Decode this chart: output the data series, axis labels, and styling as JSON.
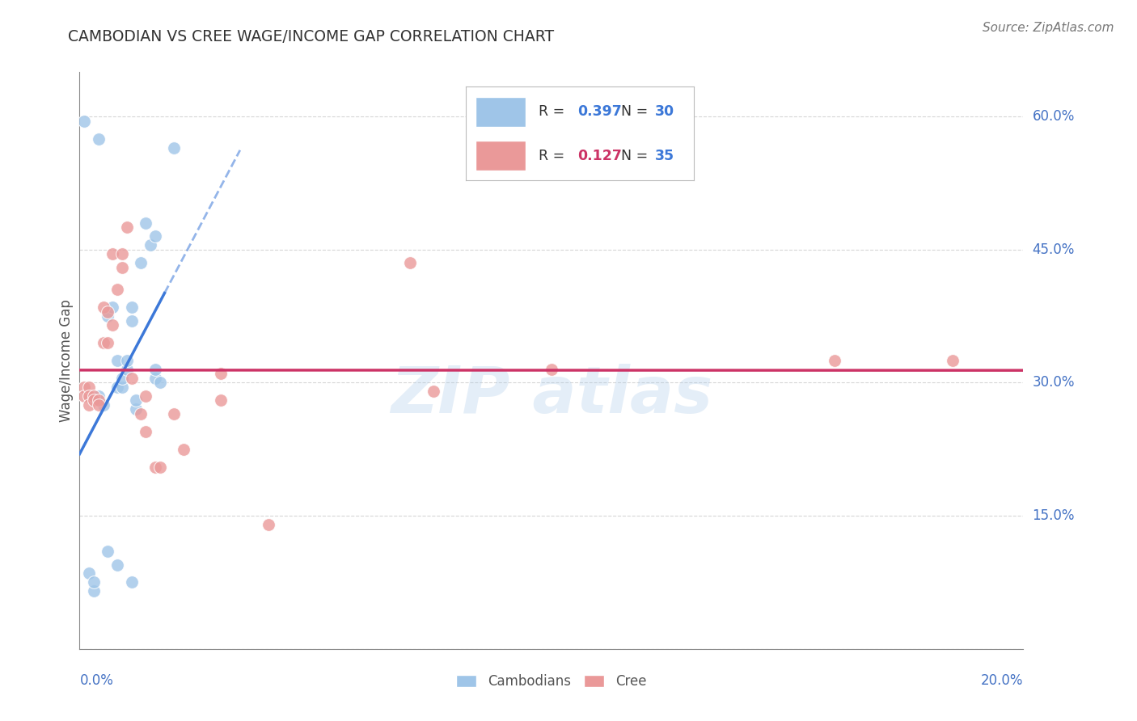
{
  "title": "CAMBODIAN VS CREE WAGE/INCOME GAP CORRELATION CHART",
  "source": "Source: ZipAtlas.com",
  "ylabel": "Wage/Income Gap",
  "xlim": [
    0.0,
    0.2
  ],
  "ylim": [
    0.0,
    0.65
  ],
  "y_ticks": [
    0.0,
    0.15,
    0.3,
    0.45,
    0.6
  ],
  "y_tick_labels": [
    "",
    "15.0%",
    "30.0%",
    "45.0%",
    "60.0%"
  ],
  "x_tick_labels": [
    "0.0%",
    "20.0%"
  ],
  "blue_color": "#9fc5e8",
  "pink_color": "#ea9999",
  "blue_line_color": "#3c78d8",
  "pink_line_color": "#cc3366",
  "grid_color": "#cccccc",
  "background_color": "#ffffff",
  "cambodian_R": "0.397",
  "cambodian_N": "30",
  "cree_R": "0.127",
  "cree_N": "35",
  "legend_blue_R_color": "#3c78d8",
  "legend_pink_R_color": "#cc3366",
  "legend_N_color": "#3c78d8",
  "cambodian_points": [
    [
      0.001,
      0.595
    ],
    [
      0.004,
      0.575
    ],
    [
      0.004,
      0.285
    ],
    [
      0.005,
      0.275
    ],
    [
      0.006,
      0.375
    ],
    [
      0.007,
      0.385
    ],
    [
      0.008,
      0.295
    ],
    [
      0.008,
      0.325
    ],
    [
      0.009,
      0.295
    ],
    [
      0.009,
      0.305
    ],
    [
      0.01,
      0.315
    ],
    [
      0.01,
      0.325
    ],
    [
      0.011,
      0.37
    ],
    [
      0.011,
      0.385
    ],
    [
      0.012,
      0.27
    ],
    [
      0.012,
      0.28
    ],
    [
      0.013,
      0.435
    ],
    [
      0.014,
      0.48
    ],
    [
      0.015,
      0.455
    ],
    [
      0.016,
      0.465
    ],
    [
      0.016,
      0.305
    ],
    [
      0.016,
      0.315
    ],
    [
      0.017,
      0.3
    ],
    [
      0.02,
      0.565
    ],
    [
      0.002,
      0.085
    ],
    [
      0.003,
      0.065
    ],
    [
      0.003,
      0.075
    ],
    [
      0.006,
      0.11
    ],
    [
      0.008,
      0.095
    ],
    [
      0.011,
      0.075
    ]
  ],
  "cree_points": [
    [
      0.001,
      0.295
    ],
    [
      0.001,
      0.285
    ],
    [
      0.002,
      0.295
    ],
    [
      0.002,
      0.285
    ],
    [
      0.002,
      0.275
    ],
    [
      0.003,
      0.285
    ],
    [
      0.003,
      0.28
    ],
    [
      0.004,
      0.28
    ],
    [
      0.004,
      0.275
    ],
    [
      0.005,
      0.345
    ],
    [
      0.005,
      0.385
    ],
    [
      0.006,
      0.345
    ],
    [
      0.006,
      0.38
    ],
    [
      0.007,
      0.365
    ],
    [
      0.007,
      0.445
    ],
    [
      0.008,
      0.405
    ],
    [
      0.009,
      0.445
    ],
    [
      0.009,
      0.43
    ],
    [
      0.01,
      0.475
    ],
    [
      0.011,
      0.305
    ],
    [
      0.013,
      0.265
    ],
    [
      0.014,
      0.245
    ],
    [
      0.014,
      0.285
    ],
    [
      0.016,
      0.205
    ],
    [
      0.017,
      0.205
    ],
    [
      0.02,
      0.265
    ],
    [
      0.022,
      0.225
    ],
    [
      0.03,
      0.31
    ],
    [
      0.03,
      0.28
    ],
    [
      0.04,
      0.14
    ],
    [
      0.07,
      0.435
    ],
    [
      0.075,
      0.29
    ],
    [
      0.1,
      0.315
    ],
    [
      0.16,
      0.325
    ],
    [
      0.185,
      0.325
    ]
  ]
}
